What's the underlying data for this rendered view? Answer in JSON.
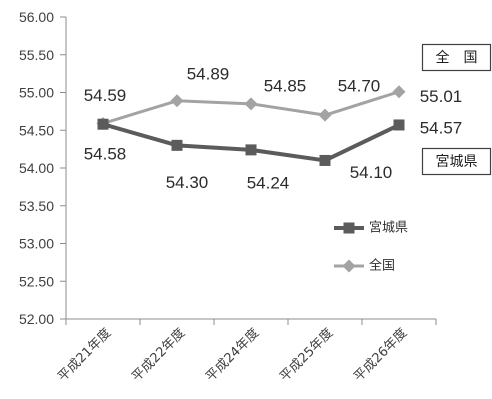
{
  "chart_data": {
    "type": "line",
    "categories": [
      "平成21年度",
      "平成22年度",
      "平成24年度",
      "平成25年度",
      "平成26年度"
    ],
    "series": [
      {
        "name": "宮城県",
        "values": [
          54.58,
          54.3,
          54.24,
          54.1,
          54.57
        ],
        "labels": [
          "54.58",
          "54.30",
          "54.24",
          "54.10",
          "54.57"
        ],
        "color": "#5b5b5b",
        "marker": "square"
      },
      {
        "name": "全国",
        "values": [
          54.59,
          54.89,
          54.85,
          54.7,
          55.01
        ],
        "labels": [
          "54.59",
          "54.89",
          "54.85",
          "54.70",
          "55.01"
        ],
        "color": "#a3a3a3",
        "marker": "diamond"
      }
    ],
    "ylim": [
      52,
      56
    ],
    "yticks": [
      "52.00",
      "52.50",
      "53.00",
      "53.50",
      "54.00",
      "54.50",
      "55.00",
      "55.50",
      "56.00"
    ],
    "grid": false,
    "legend": "bottom-right",
    "annotations": [
      {
        "text": "全　国"
      },
      {
        "text": "宮城県"
      }
    ]
  }
}
